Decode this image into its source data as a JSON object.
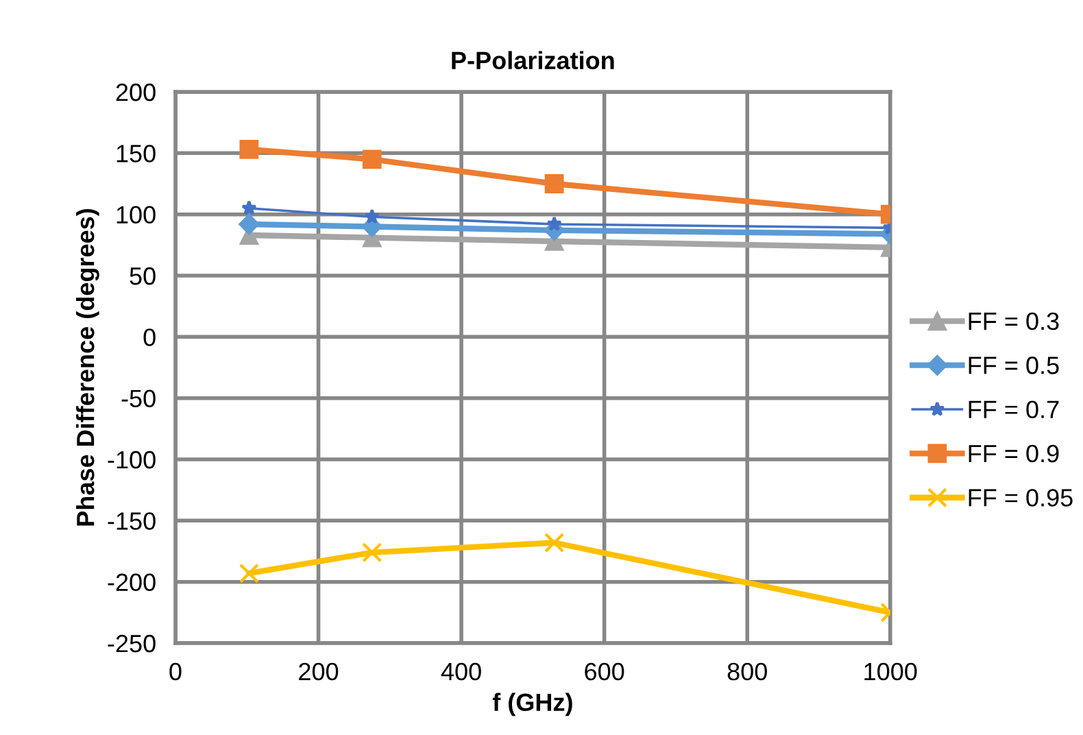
{
  "chart_data": {
    "type": "line",
    "title": "P-Polarization",
    "xlabel": "f (GHz)",
    "ylabel": "Phase Difference (degrees)",
    "xlim": [
      0,
      1000
    ],
    "xticks": [
      0,
      200,
      400,
      600,
      800,
      1000
    ],
    "ylim": [
      -250,
      200
    ],
    "yticks": [
      -250,
      -200,
      -150,
      -100,
      -50,
      0,
      50,
      100,
      150,
      200
    ],
    "grid": true,
    "legend": "right",
    "series": [
      {
        "name": "FF = 0.3",
        "color": "#a5a5a5",
        "marker": "triangle",
        "x": [
          103,
          275,
          530,
          1000
        ],
        "values": [
          83,
          81,
          78,
          73
        ]
      },
      {
        "name": "FF = 0.5",
        "color": "#5b9bd5",
        "marker": "diamond",
        "x": [
          103,
          275,
          530,
          1000
        ],
        "values": [
          92,
          90,
          87,
          84
        ]
      },
      {
        "name": "FF = 0.7",
        "color": "#4472c4",
        "marker": "star",
        "x": [
          103,
          275,
          530,
          1000
        ],
        "values": [
          105,
          98,
          92,
          89
        ]
      },
      {
        "name": "FF = 0.9",
        "color": "#ed7d31",
        "marker": "square",
        "x": [
          103,
          275,
          530,
          1000
        ],
        "values": [
          153,
          145,
          125,
          100
        ]
      },
      {
        "name": "FF = 0.95",
        "color": "#ffc000",
        "marker": "cross",
        "x": [
          103,
          275,
          530,
          1000
        ],
        "values": [
          -193,
          -176,
          -168,
          -225
        ]
      }
    ]
  }
}
